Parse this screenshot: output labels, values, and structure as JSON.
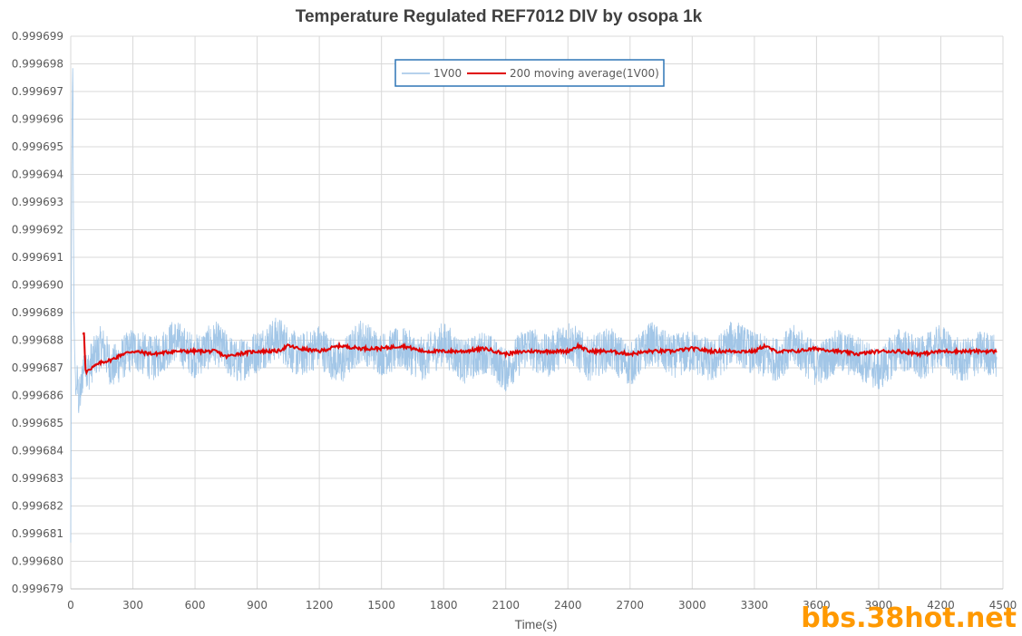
{
  "chart_data": {
    "type": "line",
    "title": "Temperature Regulated REF7012 DIV by osopa 1k",
    "xlabel": "Time(s)",
    "ylabel": "",
    "xlim": [
      0,
      4500
    ],
    "ylim": [
      0.999679,
      0.999699
    ],
    "x_ticks": [
      "0",
      "300",
      "600",
      "900",
      "1200",
      "1500",
      "1800",
      "2100",
      "2400",
      "2700",
      "3000",
      "3300",
      "3600",
      "3900",
      "4200",
      "4500"
    ],
    "y_ticks": [
      "0.999679",
      "0.999680",
      "0.999681",
      "0.999682",
      "0.999683",
      "0.999684",
      "0.999685",
      "0.999686",
      "0.999687",
      "0.999688",
      "0.999689",
      "0.999690",
      "0.999691",
      "0.999692",
      "0.999693",
      "0.999694",
      "0.999695",
      "0.999696",
      "0.999697",
      "0.999698",
      "0.999699"
    ],
    "grid": true,
    "legend_position": "top-center",
    "series": [
      {
        "name": "1V00",
        "color": "#9dc3e6",
        "x": [
          0,
          5,
          10,
          15,
          20,
          25,
          30,
          40,
          50,
          60,
          70,
          80,
          100,
          150,
          200,
          300,
          400,
          500,
          600,
          700,
          800,
          900,
          1000,
          1100,
          1200,
          1300,
          1400,
          1500,
          1600,
          1700,
          1800,
          1900,
          2000,
          2100,
          2200,
          2300,
          2400,
          2500,
          2600,
          2700,
          2800,
          2900,
          3000,
          3100,
          3200,
          3300,
          3400,
          3500,
          3600,
          3700,
          3800,
          3900,
          4000,
          4100,
          4200,
          4300,
          4400,
          4470
        ],
        "values": [
          0.9996806,
          0.9996948,
          0.999698,
          0.9996893,
          0.9996872,
          0.999686,
          0.9996865,
          0.9996858,
          0.9996862,
          0.999687,
          0.9996875,
          0.9996868,
          0.9996872,
          0.9996878,
          0.999687,
          0.9996877,
          0.9996873,
          0.999688,
          0.9996874,
          0.9996879,
          0.9996872,
          0.9996876,
          0.9996881,
          0.9996874,
          0.9996878,
          0.9996871,
          0.999688,
          0.9996875,
          0.9996877,
          0.9996873,
          0.9996879,
          0.9996872,
          0.9996876,
          0.9996869,
          0.9996878,
          0.9996874,
          0.999688,
          0.9996873,
          0.9996877,
          0.9996871,
          0.9996879,
          0.9996874,
          0.9996876,
          0.9996872,
          0.999688,
          0.9996875,
          0.9996873,
          0.9996878,
          0.9996871,
          0.9996876,
          0.9996874,
          0.9996869,
          0.9996877,
          0.9996873,
          0.9996878,
          0.9996872,
          0.9996876,
          0.9996874
        ],
        "noise_amplitude": 8e-07
      },
      {
        "name": "200 moving average(1V00)",
        "color": "#e00000",
        "x": [
          60,
          65,
          70,
          75,
          80,
          100,
          150,
          200,
          250,
          300,
          400,
          500,
          600,
          700,
          750,
          800,
          900,
          1000,
          1050,
          1100,
          1200,
          1300,
          1400,
          1500,
          1600,
          1700,
          1800,
          1900,
          2000,
          2100,
          2200,
          2300,
          2400,
          2450,
          2500,
          2600,
          2700,
          2800,
          2900,
          3000,
          3100,
          3200,
          3300,
          3350,
          3400,
          3500,
          3600,
          3700,
          3800,
          3900,
          4000,
          4100,
          4200,
          4300,
          4400,
          4470
        ],
        "values": [
          0.9996882,
          0.9996883,
          0.999687,
          0.9996868,
          0.9996869,
          0.999687,
          0.9996872,
          0.9996873,
          0.9996875,
          0.9996876,
          0.9996875,
          0.9996876,
          0.9996876,
          0.9996876,
          0.9996874,
          0.9996875,
          0.9996876,
          0.9996876,
          0.9996878,
          0.9996877,
          0.9996876,
          0.9996878,
          0.9996877,
          0.9996877,
          0.9996878,
          0.9996876,
          0.9996876,
          0.9996876,
          0.9996877,
          0.9996875,
          0.9996876,
          0.9996876,
          0.9996876,
          0.9996878,
          0.9996876,
          0.9996876,
          0.9996875,
          0.9996876,
          0.9996876,
          0.9996877,
          0.9996876,
          0.9996876,
          0.9996876,
          0.9996878,
          0.9996876,
          0.9996876,
          0.9996877,
          0.9996876,
          0.9996875,
          0.9996876,
          0.9996876,
          0.9996875,
          0.9996876,
          0.9996876,
          0.9996876,
          0.9996876
        ]
      }
    ]
  },
  "watermark": "bbs.38hot.net"
}
